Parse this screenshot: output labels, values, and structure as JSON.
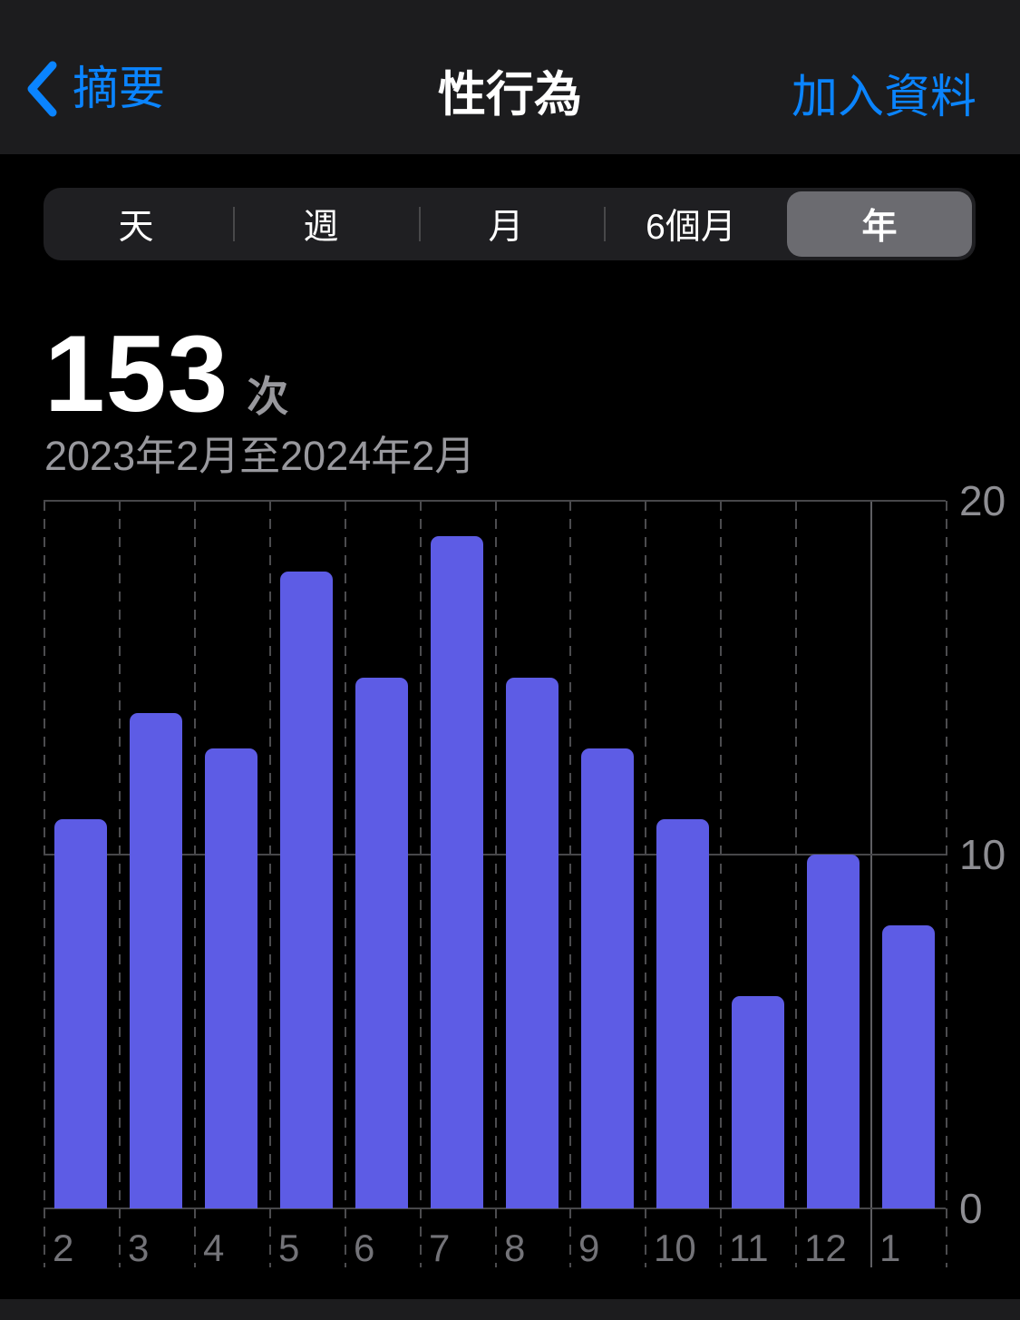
{
  "nav": {
    "back_label": "摘要",
    "title": "性行為",
    "add_label": "加入資料"
  },
  "segmented": {
    "options": [
      "天",
      "週",
      "月",
      "6個月",
      "年"
    ],
    "selected_index": 4,
    "selected_label": "年"
  },
  "summary": {
    "value": "153",
    "unit": "次",
    "period": "2023年2月至2024年2月"
  },
  "chart_data": {
    "type": "bar",
    "categories": [
      "2",
      "3",
      "4",
      "5",
      "6",
      "7",
      "8",
      "9",
      "10",
      "11",
      "12",
      "1"
    ],
    "values": [
      11,
      14,
      13,
      18,
      15,
      19,
      15,
      13,
      11,
      6,
      10,
      8
    ],
    "total": 153,
    "title": "",
    "xlabel": "",
    "ylabel": "次",
    "ylim": [
      0,
      20
    ],
    "yticks": [
      0,
      10,
      20
    ],
    "ytick_side": "right",
    "grid": "dashed-vertical",
    "legend_position": "none",
    "year_boundary_index": 11,
    "bar_color": "#5d5ce5"
  },
  "colors": {
    "accent_blue": "#0a84ff",
    "bar_purple": "#5d5ce5",
    "nav_background": "#1c1c1e",
    "page_background": "#000000",
    "secondary_text": "#98989d",
    "axis_text": "#8e8e93",
    "selected_segment": "#6b6b70"
  }
}
